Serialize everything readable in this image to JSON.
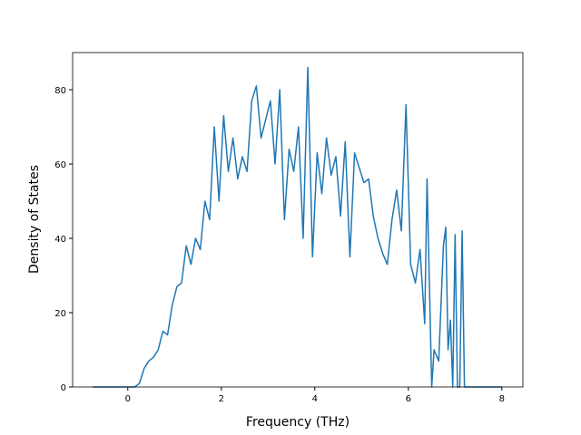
{
  "chart_data": {
    "type": "line",
    "xlabel": "Frequency (THz)",
    "ylabel": "Density of States",
    "x": [
      -0.75,
      0.15,
      0.25,
      0.35,
      0.45,
      0.55,
      0.65,
      0.75,
      0.85,
      0.95,
      1.05,
      1.15,
      1.25,
      1.35,
      1.45,
      1.55,
      1.65,
      1.75,
      1.85,
      1.95,
      2.05,
      2.15,
      2.25,
      2.35,
      2.45,
      2.55,
      2.65,
      2.75,
      2.85,
      2.95,
      3.05,
      3.15,
      3.25,
      3.35,
      3.45,
      3.55,
      3.65,
      3.75,
      3.85,
      3.95,
      4.05,
      4.15,
      4.25,
      4.35,
      4.45,
      4.55,
      4.65,
      4.75,
      4.85,
      4.95,
      5.05,
      5.15,
      5.25,
      5.35,
      5.45,
      5.55,
      5.65,
      5.75,
      5.85,
      5.95,
      6.05,
      6.15,
      6.25,
      6.35,
      6.4,
      6.5,
      6.55,
      6.65,
      6.75,
      6.8,
      6.85,
      6.9,
      6.95,
      7.0,
      7.05,
      7.1,
      7.15,
      7.2,
      8.0
    ],
    "series": [
      {
        "name": "DOS",
        "color": "#1f77b4",
        "values": [
          0,
          0,
          1,
          5,
          7,
          8,
          10,
          15,
          14,
          22,
          27,
          28,
          38,
          33,
          40,
          37,
          50,
          45,
          70,
          50,
          73,
          58,
          67,
          56,
          62,
          58,
          77,
          81,
          67,
          72,
          77,
          60,
          80,
          45,
          64,
          58,
          70,
          40,
          86,
          35,
          63,
          52,
          67,
          57,
          62,
          46,
          66,
          35,
          63,
          59,
          55,
          56,
          46,
          40,
          36,
          33,
          45,
          53,
          42,
          76,
          33,
          28,
          37,
          17,
          56,
          0,
          10,
          7,
          38,
          43,
          10,
          18,
          0,
          41,
          0,
          0,
          42,
          0,
          0
        ]
      }
    ],
    "xlim": [
      -1.18,
      8.45
    ],
    "ylim": [
      0,
      90
    ],
    "xticks": [
      0,
      2,
      4,
      6,
      8
    ],
    "yticks": [
      0,
      20,
      40,
      60,
      80
    ]
  }
}
